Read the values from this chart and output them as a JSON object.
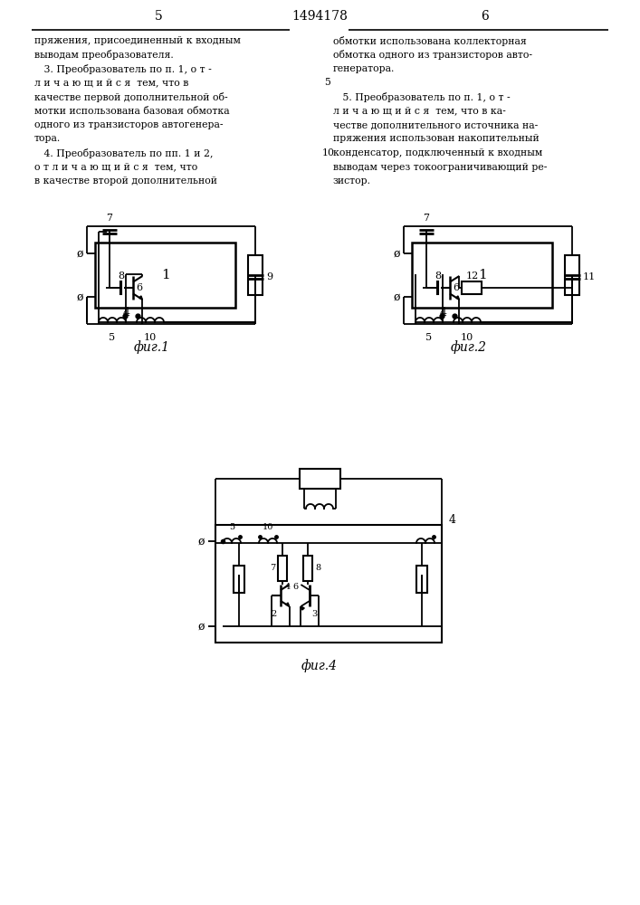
{
  "page_width": 7.07,
  "page_height": 10.0,
  "bg_color": "#ffffff",
  "text_color": "#000000",
  "line_color": "#000000",
  "left_col_text": [
    "пряжения, присоединенный к входным",
    "выводам преобразователя.",
    "   3. Преобразователь по п. 1, о т -",
    "л и ч а ю щ и й с я  тем, что в",
    "качестве первой дополнительной об-",
    "мотки использована базовая обмотка",
    "одного из транзисторов автогенера-",
    "тора.",
    "   4. Преобразователь по пп. 1 и 2,",
    "о т л и ч а ю щ и й с я  тем, что",
    "в качестве второй дополнительной"
  ],
  "right_col_text": [
    "обмотки использована коллекторная",
    "обмотка одного из транзисторов авто-",
    "генератора.",
    "",
    "   5. Преобразователь по п. 1, о т -",
    "л и ч а ю щ и й с я  тем, что в ка-",
    "честве дополнительного источника на-",
    "пряжения использован накопительный",
    "конденсатор, подключенный к входным",
    "выводам через токоограничивающий ре-",
    "зистор."
  ],
  "fig1_label": "фиг.1",
  "fig2_label": "фиг.2",
  "fig4_label": "фиг.4"
}
